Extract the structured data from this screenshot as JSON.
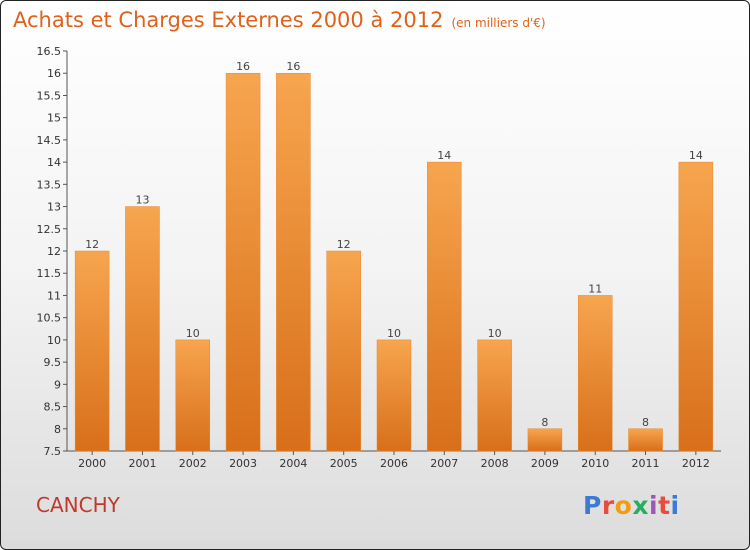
{
  "header": {
    "title": "Achats et Charges Externes 2000 à 2012",
    "subtitle": "(en milliers d'€)"
  },
  "footer": {
    "commune": "CANCHY",
    "logo_text": "Proxiti"
  },
  "colors": {
    "bar_top": "#f7a54f",
    "bar_bottom": "#d86f1a",
    "title": "#e0611a",
    "commune": "#c0392b"
  },
  "chart_data": {
    "type": "bar",
    "title": "Achats et Charges Externes 2000 à 2012",
    "subtitle": "(en milliers d'€)",
    "categories": [
      "2000",
      "2001",
      "2002",
      "2003",
      "2004",
      "2005",
      "2006",
      "2007",
      "2008",
      "2009",
      "2010",
      "2011",
      "2012"
    ],
    "values": [
      12,
      13,
      10,
      16,
      16,
      12,
      10,
      14,
      10,
      8,
      11,
      8,
      14
    ],
    "ylim": [
      7.5,
      16.5
    ],
    "yticks": [
      7.5,
      8,
      8.5,
      9,
      9.5,
      10,
      10.5,
      11,
      11.5,
      12,
      12.5,
      13,
      13.5,
      14,
      14.5,
      15,
      15.5,
      16,
      16.5
    ],
    "xlabel": "",
    "ylabel": "",
    "grid": false,
    "data_labels": true
  }
}
